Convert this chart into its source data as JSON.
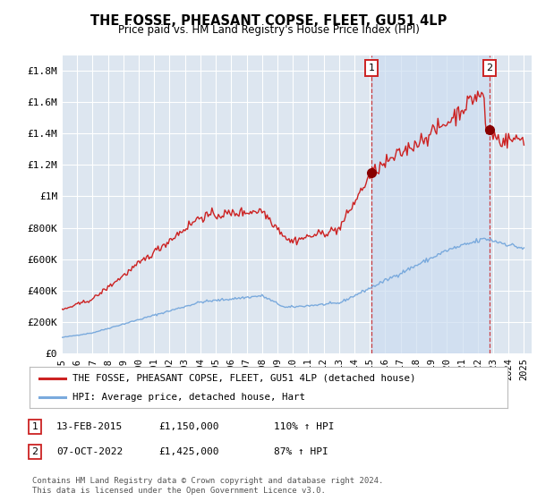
{
  "title": "THE FOSSE, PHEASANT COPSE, FLEET, GU51 4LP",
  "subtitle": "Price paid vs. HM Land Registry's House Price Index (HPI)",
  "yticks": [
    0,
    200000,
    400000,
    600000,
    800000,
    1000000,
    1200000,
    1400000,
    1600000,
    1800000
  ],
  "ytick_labels": [
    "£0",
    "£200K",
    "£400K",
    "£600K",
    "£800K",
    "£1M",
    "£1.2M",
    "£1.4M",
    "£1.6M",
    "£1.8M"
  ],
  "xlim_start": 1995.3,
  "xlim_end": 2025.5,
  "ylim_min": 0,
  "ylim_max": 1900000,
  "background_color": "#ffffff",
  "plot_bg_color": "#dde6f0",
  "shade_color": "#ccddf0",
  "grid_color": "#ffffff",
  "hpi_line_color": "#7aaadd",
  "price_line_color": "#cc2222",
  "sale1_x": 2015.1,
  "sale1_y": 1150000,
  "sale2_x": 2022.77,
  "sale2_y": 1425000,
  "legend_line1": "THE FOSSE, PHEASANT COPSE, FLEET, GU51 4LP (detached house)",
  "legend_line2": "HPI: Average price, detached house, Hart",
  "sale1_date": "13-FEB-2015",
  "sale1_price": "£1,150,000",
  "sale1_hpi": "110% ↑ HPI",
  "sale2_date": "07-OCT-2022",
  "sale2_price": "£1,425,000",
  "sale2_hpi": "87% ↑ HPI",
  "footer": "Contains HM Land Registry data © Crown copyright and database right 2024.\nThis data is licensed under the Open Government Licence v3.0.",
  "xtick_years": [
    1995,
    1996,
    1997,
    1998,
    1999,
    2000,
    2001,
    2002,
    2003,
    2004,
    2005,
    2006,
    2007,
    2008,
    2009,
    2010,
    2011,
    2012,
    2013,
    2014,
    2015,
    2016,
    2017,
    2018,
    2019,
    2020,
    2021,
    2022,
    2023,
    2024,
    2025
  ]
}
